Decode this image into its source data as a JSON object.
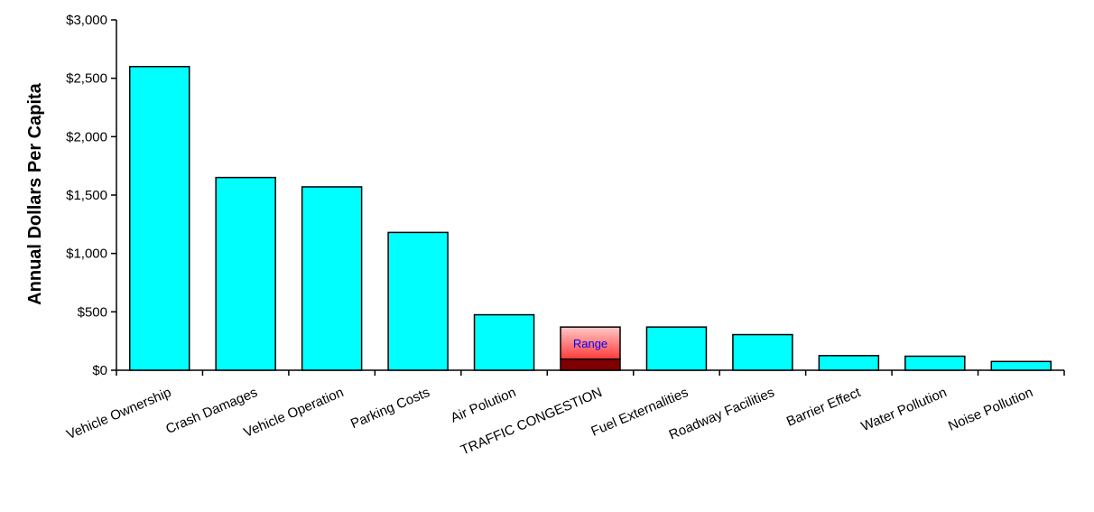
{
  "chart_data": {
    "type": "bar",
    "title": "",
    "xlabel": "",
    "ylabel": "Annual Dollars Per Capita",
    "ylim": [
      0,
      3000
    ],
    "y_ticks": [
      0,
      500,
      1000,
      1500,
      2000,
      2500,
      3000
    ],
    "y_tick_labels": [
      "$0",
      "$500",
      "$1,000",
      "$1,500",
      "$2,000",
      "$2,500",
      "$3,000"
    ],
    "grid": false,
    "legend": "none",
    "categories": [
      "Vehicle Ownership",
      "Crash Damages",
      "Vehicle Operation",
      "Parking Costs",
      "Air Polution",
      "TRAFFIC CONGESTION",
      "Fuel Externalities",
      "Roadway Facilities",
      "Barrier Effect",
      "Water Pollution",
      "Noise Pollution"
    ],
    "values": [
      2600,
      1650,
      1570,
      1180,
      475,
      95,
      370,
      305,
      125,
      120,
      75
    ],
    "range": {
      "category": "TRAFFIC CONGESTION",
      "low": 95,
      "high": 370,
      "label": "Range"
    },
    "colors": {
      "bar_fill": "#00ffff",
      "bar_stroke": "#000000",
      "range_low_fill": "#800000",
      "range_top": "#ffc8c8",
      "range_bottom": "#ff3a3a",
      "range_label": "#0000ff"
    }
  }
}
